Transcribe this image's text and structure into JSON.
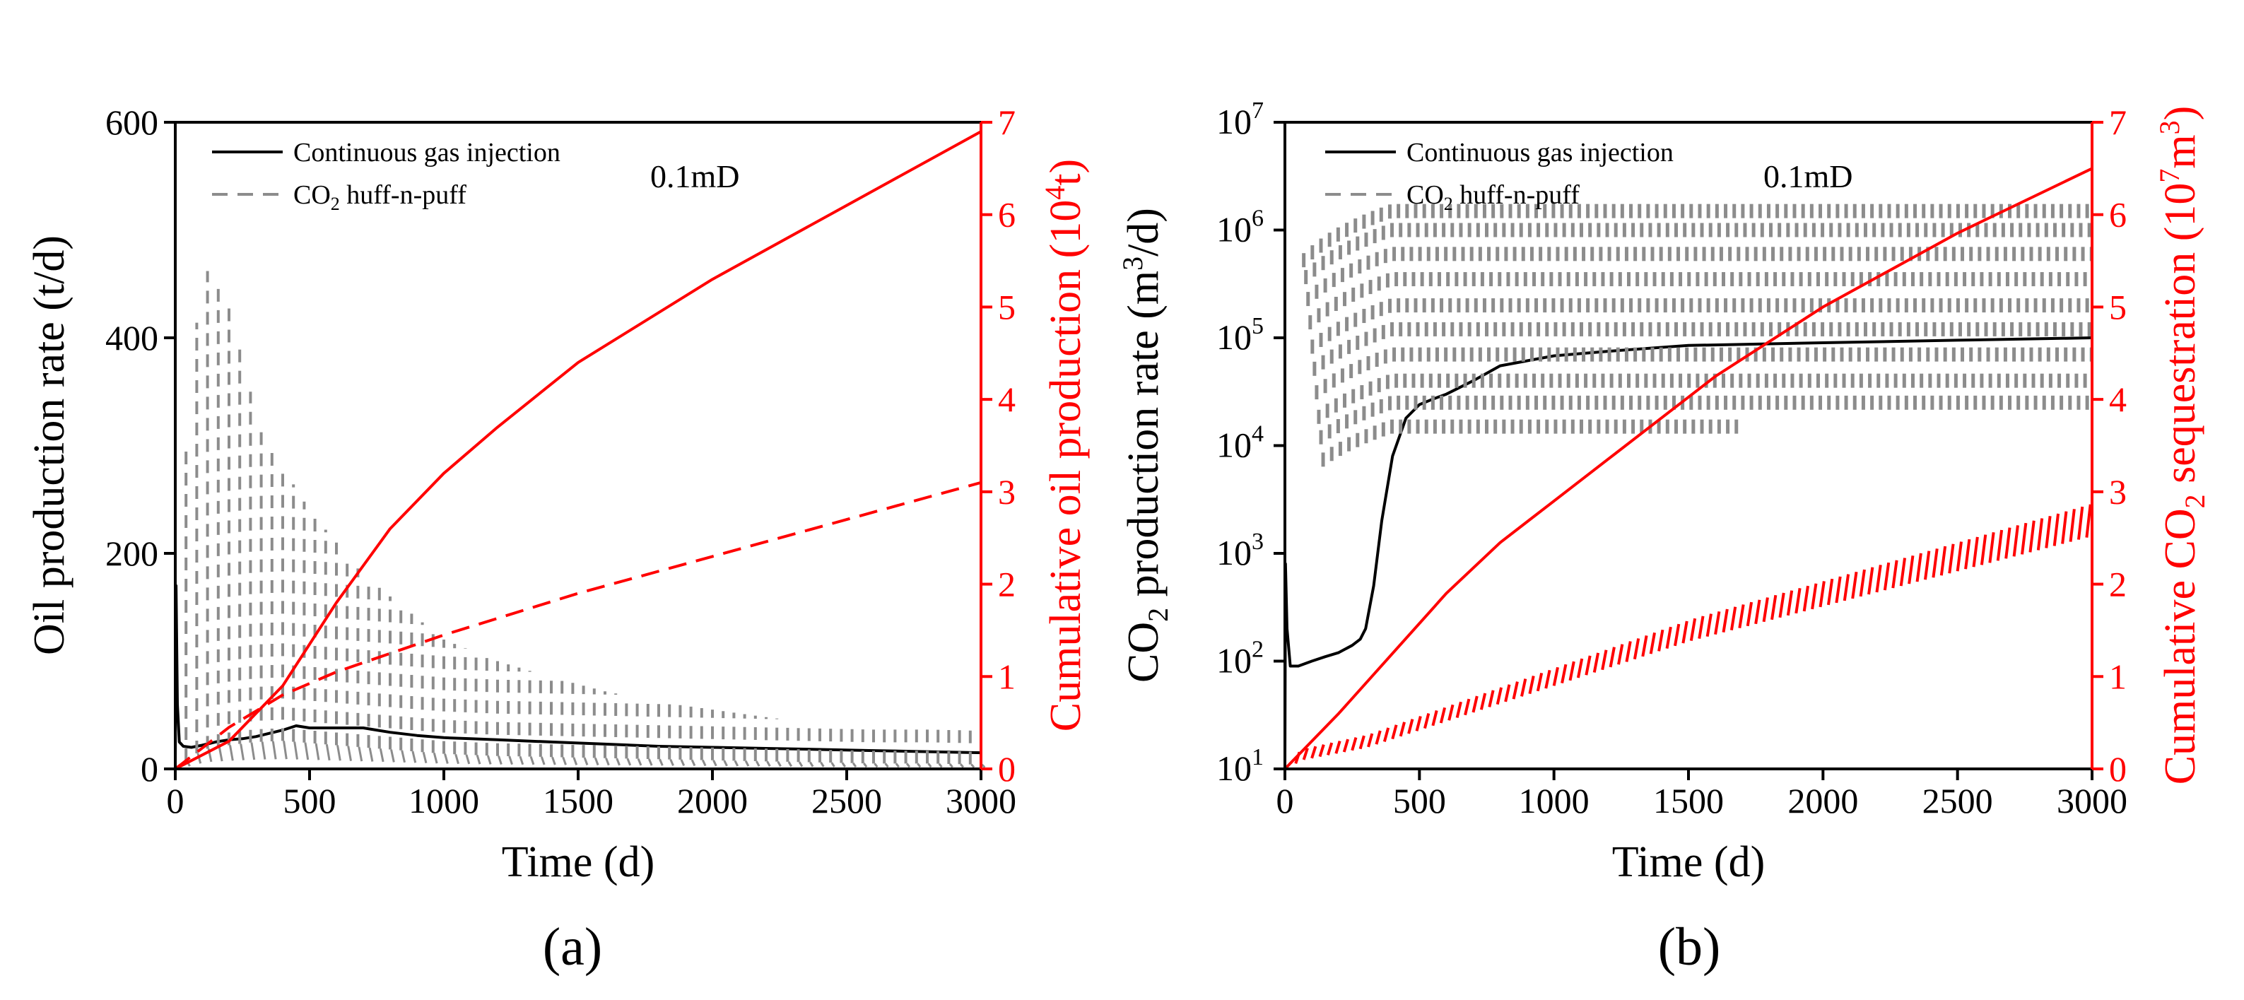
{
  "chart_data": [
    {
      "panel": "a",
      "type": "line",
      "caption": "(a)",
      "annotation": "0.1mD",
      "xlabel": "Time (d)",
      "xlim": [
        0,
        3000
      ],
      "xticks": [
        0,
        500,
        1000,
        1500,
        2000,
        2500,
        3000
      ],
      "ylabel_left": "Oil production rate (t/d)",
      "ylim_left": [
        0,
        600
      ],
      "yticks_left": [
        0,
        200,
        400,
        600
      ],
      "ylabel_right": "Cumulative oil production (10⁴t)",
      "ylim_right": [
        0,
        7
      ],
      "yticks_right": [
        0,
        1,
        2,
        3,
        4,
        5,
        6,
        7
      ],
      "legend_position": "top-left",
      "colors": {
        "left_axis": "#000000",
        "right_axis": "#ff0000",
        "huff_puff": "#8c8c8c"
      },
      "series": [
        {
          "name": "Continuous gas injection",
          "axis": "left",
          "style": "solid",
          "color": "#000000",
          "x": [
            0,
            3,
            8,
            15,
            30,
            60,
            100,
            150,
            200,
            250,
            300,
            350,
            400,
            450,
            500,
            550,
            600,
            650,
            700,
            750,
            800,
            900,
            1000,
            1100,
            1200,
            1400,
            1600,
            1800,
            2000,
            2200,
            2400,
            2600,
            2800,
            3000
          ],
          "y": [
            0,
            170,
            60,
            25,
            21,
            20,
            22,
            25,
            27,
            28,
            30,
            33,
            36,
            40,
            38,
            38,
            38,
            38,
            38,
            36,
            34,
            31,
            29,
            28,
            27,
            25,
            23,
            21,
            20,
            19,
            18,
            17,
            16,
            15
          ]
        },
        {
          "name": "CO₂ huff-n-puff",
          "axis": "left",
          "style": "dashed-spikes",
          "color": "#8c8c8c",
          "cycle_days": 40,
          "x": [
            0,
            100,
            200,
            300,
            400,
            500,
            600,
            700,
            800,
            900,
            1000,
            1200,
            1400,
            1600,
            1800,
            2000,
            2200,
            2400,
            2600,
            2800,
            3000
          ],
          "peak": [
            190,
            470,
            430,
            330,
            280,
            240,
            210,
            180,
            160,
            140,
            120,
            100,
            85,
            72,
            62,
            55,
            48,
            42,
            40,
            38,
            35
          ],
          "trough": [
            0,
            18,
            22,
            25,
            26,
            24,
            22,
            20,
            18,
            16,
            14,
            12,
            11,
            10,
            9,
            8,
            7,
            6,
            5,
            5,
            4
          ]
        },
        {
          "name": "Cumulative oil production (Continuous gas injection)",
          "axis": "right",
          "style": "solid",
          "color": "#ff0000",
          "x": [
            0,
            200,
            400,
            600,
            800,
            1000,
            1200,
            1500,
            2000,
            2500,
            3000
          ],
          "y": [
            0,
            0.3,
            0.9,
            1.8,
            2.6,
            3.2,
            3.7,
            4.4,
            5.3,
            6.1,
            6.9
          ]
        },
        {
          "name": "Cumulative oil production (CO₂ huff-n-puff)",
          "axis": "right",
          "style": "dashed",
          "color": "#ff0000",
          "x": [
            0,
            200,
            400,
            600,
            800,
            1000,
            1500,
            2000,
            2500,
            3000
          ],
          "y": [
            0,
            0.45,
            0.8,
            1.05,
            1.25,
            1.45,
            1.9,
            2.3,
            2.7,
            3.1
          ]
        }
      ]
    },
    {
      "panel": "b",
      "type": "line",
      "caption": "(b)",
      "annotation": "0.1mD",
      "xlabel": "Time (d)",
      "xlim": [
        0,
        3000
      ],
      "xticks": [
        0,
        500,
        1000,
        1500,
        2000,
        2500,
        3000
      ],
      "ylabel_left": "CO₂ production rate (m³/d)",
      "yscale_left": "log",
      "ylim_left": [
        10,
        10000000
      ],
      "yticks_left": [
        {
          "base": "10",
          "exp": "1"
        },
        {
          "base": "10",
          "exp": "2"
        },
        {
          "base": "10",
          "exp": "3"
        },
        {
          "base": "10",
          "exp": "4"
        },
        {
          "base": "10",
          "exp": "5"
        },
        {
          "base": "10",
          "exp": "6"
        },
        {
          "base": "10",
          "exp": "7"
        }
      ],
      "ylabel_right": "Cumulative CO₂ sequestration (10⁷m³)",
      "ylim_right": [
        0,
        7
      ],
      "yticks_right": [
        0,
        1,
        2,
        3,
        4,
        5,
        6,
        7
      ],
      "legend_position": "top-left",
      "colors": {
        "left_axis": "#000000",
        "right_axis": "#ff0000",
        "huff_puff": "#8c8c8c"
      },
      "series": [
        {
          "name": "Continuous gas injection",
          "axis": "left",
          "style": "solid",
          "color": "#000000",
          "x": [
            0,
            2,
            8,
            20,
            50,
            100,
            150,
            200,
            250,
            280,
            300,
            330,
            360,
            400,
            450,
            500,
            550,
            600,
            700,
            800,
            1000,
            1200,
            1500,
            2000,
            2500,
            3000
          ],
          "y": [
            10,
            800,
            200,
            90,
            90,
            100,
            110,
            120,
            140,
            160,
            200,
            500,
            2000,
            8000,
            18000,
            24000,
            27000,
            30000,
            40000,
            55000,
            68000,
            75000,
            85000,
            90000,
            95000,
            100000
          ]
        },
        {
          "name": "CO₂ huff-n-puff",
          "axis": "left",
          "style": "dashed-spikes",
          "color": "#8c8c8c",
          "x_start": 70,
          "x_end": 3000,
          "levels": [
            1500000,
            1000000,
            600000,
            350000,
            200000,
            120000,
            70000,
            40000,
            25000,
            15000
          ]
        },
        {
          "name": "Cumulative CO₂ sequestration (Continuous gas injection)",
          "axis": "right",
          "style": "solid",
          "color": "#ff0000",
          "x": [
            0,
            200,
            400,
            600,
            800,
            1000,
            1200,
            1400,
            1600,
            2000,
            2500,
            3000
          ],
          "y": [
            0,
            0.6,
            1.25,
            1.9,
            2.45,
            2.9,
            3.35,
            3.8,
            4.25,
            5.0,
            5.8,
            6.5
          ]
        },
        {
          "name": "Cumulative CO₂ sequestration (CO₂ huff-n-puff)",
          "axis": "right",
          "style": "dashed-zigzag",
          "color": "#ff0000",
          "x": [
            0,
            50,
            300,
            600,
            1000,
            1500,
            2000,
            2500,
            3000
          ],
          "y": [
            0,
            0.15,
            0.3,
            0.6,
            1.0,
            1.5,
            1.9,
            2.3,
            2.7
          ]
        }
      ]
    }
  ],
  "labels": {
    "a": {
      "ylabel_left": "Oil production rate (t/d)",
      "xlabel": "Time (d)",
      "ylabel_right_prefix": "Cumulative oil production (10",
      "ylabel_right_sup": "4",
      "ylabel_right_suffix": "t)",
      "legend_solid": "Continuous gas injection",
      "legend_dashed_prefix": "CO",
      "legend_dashed_sub": "2",
      "legend_dashed_suffix": " huff-n-puff"
    },
    "b": {
      "ylabel_left_co": "CO",
      "ylabel_left_sub": "2",
      "ylabel_left_mid": " production rate (m",
      "ylabel_left_sup": "3",
      "ylabel_left_end": "/d)",
      "xlabel": "Time (d)",
      "ylabel_right_1": "Cumulative CO",
      "ylabel_right_sub": "2",
      "ylabel_right_2": " sequestration (10",
      "ylabel_right_sup": "7",
      "ylabel_right_3": "m",
      "ylabel_right_sup2": "3",
      "ylabel_right_4": ")",
      "legend_solid": "Continuous gas injection",
      "legend_dashed_prefix": "CO",
      "legend_dashed_sub": "2",
      "legend_dashed_suffix": " huff-n-puff"
    }
  }
}
